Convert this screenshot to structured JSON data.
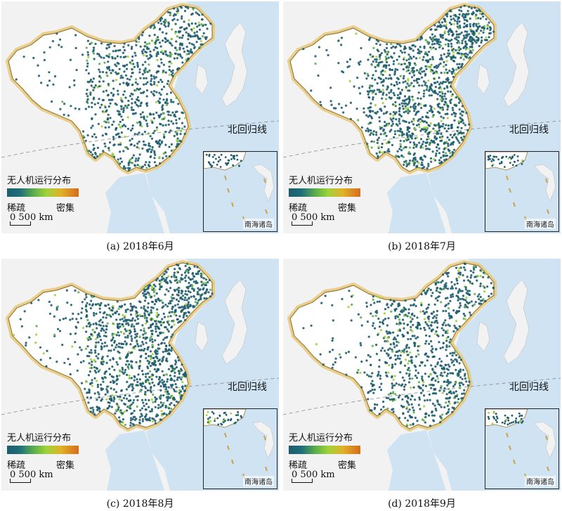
{
  "legend": {
    "title": "无人机运行分布",
    "low_label": "稀疏",
    "high_label": "密集",
    "colors": [
      "#1d5d6e",
      "#5fb04a",
      "#9ed23a",
      "#e0b22a",
      "#d66c1c"
    ]
  },
  "scale": {
    "label": "0 500 km"
  },
  "tropic_label": "北回归线",
  "inset_label": "南海诸岛",
  "colors": {
    "sea": "#cfe3f2",
    "land": "#ffffff",
    "border_glow": "#e8c97a",
    "dots": "#1f6f7a"
  },
  "panels": [
    {
      "caption": "(a) 2018年6月",
      "density": "medium"
    },
    {
      "caption": "(b) 2018年7月",
      "density": "high"
    },
    {
      "caption": "(c) 2018年8月",
      "density": "high"
    },
    {
      "caption": "(d) 2018年9月",
      "density": "medium"
    }
  ]
}
